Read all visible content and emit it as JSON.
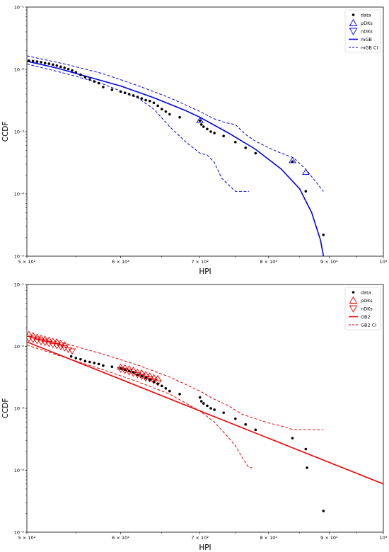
{
  "chart_data": [
    {
      "type": "line",
      "xlabel": "HPI",
      "ylabel": "CCDF",
      "xscale": "log",
      "yscale": "log",
      "xlim": [
        500,
        1000
      ],
      "ylim": [
        1e-05,
        0.1
      ],
      "x_ticks": [
        {
          "value": 500,
          "label": "5 × 10²"
        },
        {
          "value": 600,
          "label": "6 × 10²"
        },
        {
          "value": 700,
          "label": "7 × 10²"
        },
        {
          "value": 800,
          "label": "8 × 10²"
        },
        {
          "value": 900,
          "label": "9 × 10²"
        },
        {
          "value": 1000,
          "label": "10³"
        }
      ],
      "y_ticks": [
        {
          "value": 1e-05,
          "label": "10⁻⁵"
        },
        {
          "value": 0.0001,
          "label": "10⁻⁴"
        },
        {
          "value": 0.001,
          "label": "10⁻³"
        },
        {
          "value": 0.01,
          "label": "10⁻²"
        },
        {
          "value": 0.1,
          "label": "10⁻¹"
        }
      ],
      "accent_color": "#0000ee",
      "legend_position": "top-right",
      "legend": [
        "data",
        "pDKs",
        "nDKs",
        "mGB",
        "mGB CI"
      ],
      "series": [
        {
          "name": "data",
          "kind": "points",
          "color": "#000000",
          "x": [
            502,
            506,
            510,
            514,
            518,
            522,
            526,
            530,
            534,
            538,
            542,
            546,
            550,
            555,
            560,
            565,
            570,
            575,
            580,
            590,
            600,
            605,
            610,
            615,
            620,
            625,
            630,
            635,
            640,
            645,
            650,
            655,
            660,
            673,
            700,
            702,
            705,
            710,
            715,
            720,
            733,
            750,
            765,
            780,
            838,
            860,
            890
          ],
          "y": [
            0.0138,
            0.0136,
            0.0133,
            0.013,
            0.0126,
            0.0123,
            0.0119,
            0.0115,
            0.011,
            0.0106,
            0.0101,
            0.0096,
            0.009,
            0.0082,
            0.0075,
            0.0069,
            0.0064,
            0.006,
            0.0052,
            0.0047,
            0.0044,
            0.0042,
            0.004,
            0.0038,
            0.0036,
            0.0034,
            0.0032,
            0.0031,
            0.0029,
            0.0026,
            0.0023,
            0.0021,
            0.0019,
            0.0017,
            0.0015,
            0.0013,
            0.0012,
            0.0011,
            0.001,
            0.00095,
            0.00085,
            0.00068,
            0.00055,
            0.00045,
            0.00033,
            0.00011,
            2.2e-05
          ]
        },
        {
          "name": "pDKs",
          "kind": "markers-up",
          "color": "#0000ee",
          "x": [
            700,
            838,
            860
          ],
          "y": [
            0.0015,
            0.00034,
            0.00022
          ]
        },
        {
          "name": "mGB",
          "kind": "line",
          "color": "#0000ee",
          "x": [
            500,
            530,
            560,
            600,
            640,
            680,
            700,
            740,
            780,
            820,
            850,
            870,
            885,
            890
          ],
          "y": [
            0.0135,
            0.0105,
            0.0078,
            0.0054,
            0.0035,
            0.0022,
            0.0017,
            0.00095,
            0.00052,
            0.00025,
            0.00012,
            5e-05,
            1.8e-05,
            1e-05
          ]
        },
        {
          "name": "mGB CI upper",
          "kind": "dashed",
          "color": "#0000ee",
          "x": [
            500,
            540,
            580,
            620,
            660,
            700,
            720,
            735,
            750,
            765,
            780,
            800,
            820,
            840,
            860,
            890
          ],
          "y": [
            0.0165,
            0.012,
            0.0085,
            0.0055,
            0.0035,
            0.0021,
            0.0016,
            0.0014,
            0.0013,
            0.0009,
            0.0007,
            0.00055,
            0.00045,
            0.00038,
            0.00025,
            0.00011
          ]
        },
        {
          "name": "mGB CI lower",
          "kind": "dashed",
          "color": "#0000ee",
          "x": [
            500,
            540,
            580,
            620,
            640,
            660,
            680,
            700,
            710,
            720,
            730,
            740,
            750,
            760,
            770
          ],
          "y": [
            0.0122,
            0.0085,
            0.0058,
            0.0035,
            0.0023,
            0.0012,
            0.0007,
            0.00045,
            0.00042,
            0.00032,
            0.00018,
            0.00014,
            0.00011,
            0.00011,
            0.00011
          ]
        }
      ]
    },
    {
      "type": "line",
      "xlabel": "HPI",
      "ylabel": "CCDF",
      "xscale": "log",
      "yscale": "log",
      "xlim": [
        500,
        1000
      ],
      "ylim": [
        1e-05,
        0.1
      ],
      "x_ticks": [
        {
          "value": 500,
          "label": "5 × 10²"
        },
        {
          "value": 600,
          "label": "6 × 10²"
        },
        {
          "value": 700,
          "label": "7 × 10²"
        },
        {
          "value": 800,
          "label": "8 × 10²"
        },
        {
          "value": 900,
          "label": "9 × 10²"
        },
        {
          "value": 1000,
          "label": "10³"
        }
      ],
      "y_ticks": [
        {
          "value": 1e-05,
          "label": "10⁻⁵"
        },
        {
          "value": 0.0001,
          "label": "10⁻⁴"
        },
        {
          "value": 0.001,
          "label": "10⁻³"
        },
        {
          "value": 0.01,
          "label": "10⁻²"
        },
        {
          "value": 0.1,
          "label": "10⁻¹"
        }
      ],
      "accent_color": "#ee0000",
      "legend_position": "top-right",
      "legend": [
        "data",
        "pDKs",
        "nDKs",
        "GB2",
        "GB2 CI"
      ],
      "series": [
        {
          "name": "data",
          "kind": "points",
          "color": "#000000",
          "x": [
            545,
            550,
            555,
            560,
            565,
            570,
            575,
            580,
            590,
            600,
            605,
            610,
            615,
            620,
            625,
            630,
            635,
            640,
            645,
            650,
            655,
            660,
            673,
            700,
            702,
            705,
            710,
            715,
            720,
            733,
            750,
            765,
            780,
            838,
            860,
            862,
            890
          ],
          "y": [
            0.0069,
            0.0065,
            0.0062,
            0.0058,
            0.0056,
            0.0054,
            0.0052,
            0.0049,
            0.0047,
            0.0044,
            0.0042,
            0.004,
            0.0038,
            0.0035,
            0.0033,
            0.0031,
            0.0029,
            0.0027,
            0.0025,
            0.0023,
            0.0021,
            0.0019,
            0.0017,
            0.0015,
            0.0013,
            0.0012,
            0.0011,
            0.001,
            0.00095,
            0.00085,
            0.00068,
            0.00055,
            0.00045,
            0.00033,
            0.00022,
            0.00011,
            2.2e-05
          ]
        },
        {
          "name": "pDKs",
          "kind": "markers-up",
          "color": "#ee0000",
          "x": [
            502,
            506,
            510,
            514,
            518,
            522,
            526,
            530,
            534,
            538,
            600,
            605,
            610,
            615,
            620,
            625,
            630,
            635,
            640,
            645
          ],
          "y": [
            0.0155,
            0.0148,
            0.014,
            0.0135,
            0.013,
            0.0125,
            0.012,
            0.0118,
            0.0112,
            0.0105,
            0.0046,
            0.0045,
            0.0043,
            0.0041,
            0.0038,
            0.0037,
            0.0035,
            0.0033,
            0.0031,
            0.003
          ]
        },
        {
          "name": "nDKs",
          "kind": "markers-down",
          "color": "#ee0000",
          "x": [
            502,
            506,
            510,
            514,
            518,
            522,
            526,
            530,
            534,
            538,
            542,
            546,
            600,
            605,
            610,
            615,
            620,
            625,
            630,
            635,
            640,
            645
          ],
          "y": [
            0.0135,
            0.013,
            0.0125,
            0.012,
            0.0116,
            0.0112,
            0.0108,
            0.0104,
            0.01,
            0.0095,
            0.009,
            0.0085,
            0.0043,
            0.0041,
            0.0039,
            0.0037,
            0.0035,
            0.0033,
            0.0031,
            0.003,
            0.0028,
            0.0026
          ]
        },
        {
          "name": "GB2",
          "kind": "line",
          "color": "#ee0000",
          "x": [
            500,
            1000
          ],
          "y": [
            0.0118,
            6e-05
          ]
        },
        {
          "name": "GB2 CI upper",
          "kind": "dashed",
          "color": "#ee0000",
          "x": [
            500,
            540,
            580,
            620,
            660,
            700,
            720,
            740,
            760,
            780,
            800,
            820,
            840,
            860,
            890
          ],
          "y": [
            0.0155,
            0.011,
            0.0075,
            0.005,
            0.0032,
            0.0019,
            0.0014,
            0.0011,
            0.0008,
            0.00068,
            0.00058,
            0.00052,
            0.00045,
            0.00045,
            0.00045
          ]
        },
        {
          "name": "GB2 CI lower",
          "kind": "dashed",
          "color": "#ee0000",
          "x": [
            500,
            540,
            580,
            620,
            660,
            700,
            720,
            735,
            750,
            760,
            770,
            775
          ],
          "y": [
            0.0105,
            0.0065,
            0.0042,
            0.0027,
            0.0017,
            0.0009,
            0.0006,
            0.00039,
            0.00025,
            0.00016,
            0.00011,
            0.00011
          ]
        }
      ]
    }
  ]
}
